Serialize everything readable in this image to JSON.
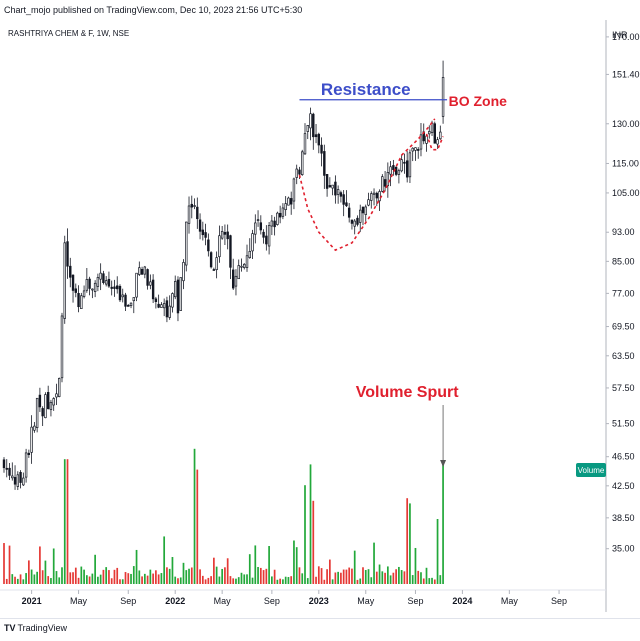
{
  "header": {
    "publisher": "Chart_mojo published on TradingView.com, Dec 10, 2023 21:56 UTC+5:30"
  },
  "footer": {
    "brand_mark": "TV",
    "brand": "TradingView"
  },
  "colors": {
    "up": "#26a69a",
    "vol_up": "#26a69a",
    "vol_down": "#ef5350",
    "candle": "#131722",
    "resistance": "#3d4ec9",
    "annotation_red": "#e0202e",
    "volume_badge": "#089981"
  },
  "chart_data": {
    "type": "candlestick",
    "symbol_label": "RASHTRIYA CHEM & F, 1W, NSE",
    "currency": "INR",
    "scale": "log",
    "price_ticks": [
      "170.00",
      "151.40",
      "130.00",
      "115.00",
      "105.00",
      "93.00",
      "85.00",
      "77.00",
      "69.50",
      "63.50",
      "57.50",
      "51.50",
      "46.50",
      "42.50",
      "38.50",
      "35.00"
    ],
    "price_tick_values": [
      170,
      151.4,
      130,
      115,
      105,
      93,
      85,
      77,
      69.5,
      63.5,
      57.5,
      51.5,
      46.5,
      42.5,
      38.5,
      35
    ],
    "ylim": [
      31,
      178
    ],
    "x_ticks": [
      {
        "label": "2021",
        "t": 0,
        "bold": true
      },
      {
        "label": "May",
        "t": 17
      },
      {
        "label": "Sep",
        "t": 35
      },
      {
        "label": "2022",
        "t": 52,
        "bold": true
      },
      {
        "label": "May",
        "t": 69
      },
      {
        "label": "Sep",
        "t": 87
      },
      {
        "label": "2023",
        "t": 104,
        "bold": true
      },
      {
        "label": "May",
        "t": 121
      },
      {
        "label": "Sep",
        "t": 139
      },
      {
        "label": "2024",
        "t": 156,
        "bold": true
      },
      {
        "label": "May",
        "t": 173
      },
      {
        "label": "Sep",
        "t": 191
      }
    ],
    "x_range": [
      -10,
      208
    ],
    "anchors": [
      [
        -10,
        46
      ],
      [
        -7,
        44
      ],
      [
        -4,
        43
      ],
      [
        -1,
        47
      ],
      [
        2,
        54
      ],
      [
        5,
        55
      ],
      [
        8,
        56
      ],
      [
        10,
        58
      ],
      [
        11,
        72
      ],
      [
        12,
        88
      ],
      [
        14,
        80
      ],
      [
        17,
        74
      ],
      [
        20,
        81
      ],
      [
        23,
        80
      ],
      [
        26,
        82
      ],
      [
        29,
        79
      ],
      [
        32,
        76
      ],
      [
        35,
        74
      ],
      [
        37,
        78
      ],
      [
        40,
        83
      ],
      [
        43,
        78
      ],
      [
        46,
        74
      ],
      [
        49,
        73
      ],
      [
        52,
        78
      ],
      [
        53,
        72
      ],
      [
        56,
        96
      ],
      [
        59,
        102
      ],
      [
        61,
        94
      ],
      [
        64,
        88
      ],
      [
        66,
        82
      ],
      [
        68,
        94
      ],
      [
        71,
        90
      ],
      [
        73,
        80
      ],
      [
        76,
        84
      ],
      [
        79,
        90
      ],
      [
        82,
        96
      ],
      [
        85,
        92
      ],
      [
        88,
        95
      ],
      [
        91,
        100
      ],
      [
        94,
        104
      ],
      [
        97,
        113
      ],
      [
        99,
        125
      ],
      [
        101,
        132
      ],
      [
        103,
        126
      ],
      [
        105,
        116
      ],
      [
        107,
        110
      ],
      [
        110,
        105
      ],
      [
        112,
        102
      ],
      [
        114,
        98
      ],
      [
        116,
        96
      ],
      [
        118,
        97
      ],
      [
        120,
        99
      ],
      [
        122,
        102
      ],
      [
        125,
        106
      ],
      [
        128,
        109
      ],
      [
        131,
        111
      ],
      [
        134,
        117
      ],
      [
        136,
        114
      ],
      [
        139,
        119
      ],
      [
        141,
        125
      ],
      [
        144,
        128
      ],
      [
        146,
        126
      ],
      [
        148,
        126
      ],
      [
        149,
        133
      ]
    ],
    "last_candle": {
      "open": 133,
      "high": 158,
      "low": 130,
      "close": 150
    },
    "volume": {
      "label": "Volume",
      "spikes": [
        [
          12,
          48
        ],
        [
          13,
          48
        ],
        [
          59,
          52
        ],
        [
          60,
          44
        ],
        [
          101,
          46
        ],
        [
          102,
          32
        ],
        [
          99,
          38
        ],
        [
          136,
          33
        ],
        [
          137,
          31
        ],
        [
          147,
          25
        ],
        [
          149,
          47
        ]
      ]
    },
    "annotations": {
      "resistance_label": "Resistance",
      "resistance_level": 140,
      "resistance_range": [
        97,
        149
      ],
      "bo_zone_label": "BO Zone",
      "volume_spurt_label": "Volume Spurt",
      "cup_points": [
        [
          97,
          111
        ],
        [
          100,
          100
        ],
        [
          104,
          93
        ],
        [
          110,
          88
        ],
        [
          116,
          90
        ],
        [
          122,
          97
        ],
        [
          128,
          106
        ],
        [
          134,
          118
        ],
        [
          140,
          124
        ],
        [
          144,
          129
        ],
        [
          146,
          132
        ]
      ],
      "handle_points": [
        [
          143,
          126
        ],
        [
          145,
          120
        ],
        [
          147,
          120
        ],
        [
          149,
          125
        ]
      ]
    }
  }
}
